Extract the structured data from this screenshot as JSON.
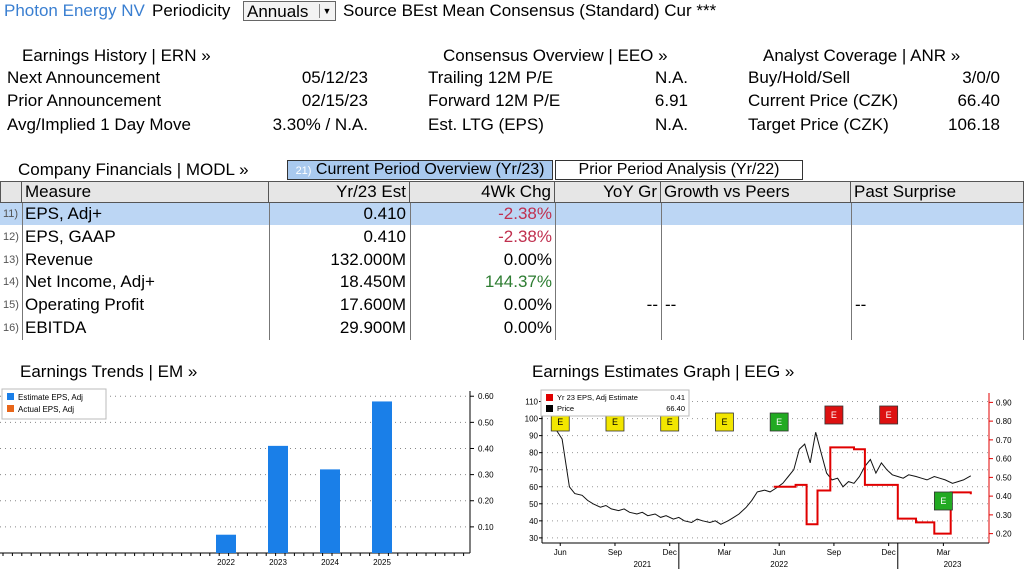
{
  "topbar": {
    "company": "Photon Energy NV",
    "periodicity_label": "Periodicity",
    "periodicity_value": "Annuals",
    "source_text": "Source BEst Mean Consensus (Standard) Cur ***"
  },
  "earnings_history": {
    "header": "Earnings History | ERN »",
    "rows": [
      {
        "label": "Next Announcement",
        "value": "05/12/23"
      },
      {
        "label": "Prior Announcement",
        "value": "02/15/23"
      },
      {
        "label": "Avg/Implied 1 Day Move",
        "value": "3.30% / N.A."
      }
    ]
  },
  "consensus_overview": {
    "header": "Consensus Overview | EEO »",
    "rows": [
      {
        "label": "Trailing 12M P/E",
        "value": "N.A."
      },
      {
        "label": "Forward 12M P/E",
        "value": "6.91"
      },
      {
        "label": "Est. LTG (EPS)",
        "value": "N.A."
      }
    ]
  },
  "analyst_coverage": {
    "header": "Analyst Coverage | ANR »",
    "rows": [
      {
        "label": "Buy/Hold/Sell",
        "value": "3/0/0"
      },
      {
        "label": "Current Price (CZK)",
        "value": "66.40"
      },
      {
        "label": "Target Price (CZK)",
        "value": "106.18"
      }
    ]
  },
  "financials": {
    "header": "Company Financials | MODL »",
    "tab_current_num": "21)",
    "tab_current": "Current Period Overview (Yr/23)",
    "tab_prior": "Prior Period Analysis (Yr/22)",
    "columns": [
      "Measure",
      "Yr/23 Est",
      "4Wk Chg",
      "YoY Gr",
      "Growth vs Peers",
      "Past Surprise"
    ],
    "rows": [
      {
        "num": "11)",
        "measure": "EPS, Adj+",
        "est": "0.410",
        "chg": "-2.38%",
        "yoy": "",
        "peers": "",
        "surprise": ""
      },
      {
        "num": "12)",
        "measure": "EPS, GAAP",
        "est": "0.410",
        "chg": "-2.38%",
        "yoy": "",
        "peers": "",
        "surprise": ""
      },
      {
        "num": "13)",
        "measure": "Revenue",
        "est": "132.000M",
        "chg": "0.00%",
        "yoy": "",
        "peers": "",
        "surprise": ""
      },
      {
        "num": "14)",
        "measure": "Net Income, Adj+",
        "est": "18.450M",
        "chg": "144.37%",
        "yoy": "",
        "peers": "",
        "surprise": ""
      },
      {
        "num": "15)",
        "measure": "Operating Profit",
        "est": "17.600M",
        "chg": "0.00%",
        "yoy": "--",
        "peers": "--",
        "surprise": "--"
      },
      {
        "num": "16)",
        "measure": "EBITDA",
        "est": "29.900M",
        "chg": "0.00%",
        "yoy": "",
        "peers": "",
        "surprise": ""
      }
    ]
  },
  "chart_data": [
    {
      "type": "bar",
      "title": "Earnings Trends | EM »",
      "legend": [
        "Estimate EPS, Adj",
        "Actual EPS, Adj"
      ],
      "legend_colors": [
        "#1a7fe8",
        "#e8661a"
      ],
      "categories": [
        "2022",
        "2023",
        "2024",
        "2025"
      ],
      "values": [
        0.07,
        0.41,
        0.32,
        0.58
      ],
      "ylim": [
        0,
        0.62
      ],
      "yticks": [
        "0.10",
        "0.20",
        "0.30",
        "0.40",
        "0.50",
        "0.60"
      ],
      "ytick_values": [
        0.1,
        0.2,
        0.3,
        0.4,
        0.5,
        0.6
      ]
    },
    {
      "type": "line",
      "title": "Earnings Estimates Graph | EEG »",
      "legend": [
        {
          "name": "Yr 23 EPS, Adj Estimate",
          "value": "0.41",
          "color": "#e00000"
        },
        {
          "name": "Price",
          "value": "66.40",
          "color": "#000000"
        }
      ],
      "left_yticks": [
        "30",
        "40",
        "50",
        "60",
        "70",
        "80",
        "90",
        "100",
        "110"
      ],
      "left_ytick_values": [
        30,
        40,
        50,
        60,
        70,
        80,
        90,
        100,
        110
      ],
      "left_ylim": [
        27,
        115
      ],
      "right_yticks": [
        "0.20",
        "0.30",
        "0.40",
        "0.50",
        "0.60",
        "0.70",
        "0.80",
        "0.90"
      ],
      "right_ytick_values": [
        0.2,
        0.3,
        0.4,
        0.5,
        0.6,
        0.7,
        0.8,
        0.9
      ],
      "right_ylim": [
        0.15,
        0.95
      ],
      "xticks": [
        "Jun",
        "Sep",
        "Dec",
        "Mar",
        "Jun",
        "Sep",
        "Dec",
        "Mar"
      ],
      "xtick_values": [
        0.5,
        3.5,
        6.5,
        9.5,
        12.5,
        15.5,
        18.5,
        21.5
      ],
      "xlim": [
        -0.5,
        24
      ],
      "year_labels": [
        {
          "label": "2021",
          "x": 5
        },
        {
          "label": "2022",
          "x": 12.5
        },
        {
          "label": "2023",
          "x": 22
        }
      ],
      "year_dividers": [
        7,
        19
      ],
      "event_marker": "E",
      "events": [
        {
          "x": 0.5,
          "color": "#f2e600"
        },
        {
          "x": 3.5,
          "color": "#f2e600"
        },
        {
          "x": 6.5,
          "color": "#f2e600"
        },
        {
          "x": 9.5,
          "color": "#f2e600"
        },
        {
          "x": 12.5,
          "color": "#22aa22"
        },
        {
          "x": 15.5,
          "color": "#dd1111"
        },
        {
          "x": 18.5,
          "color": "#dd1111"
        },
        {
          "x": 21.5,
          "color": "#22aa22"
        }
      ],
      "price": [
        [
          0,
          95
        ],
        [
          0.3,
          93
        ],
        [
          0.6,
          88
        ],
        [
          1,
          60
        ],
        [
          1.3,
          56
        ],
        [
          1.7,
          55
        ],
        [
          2,
          52
        ],
        [
          2.3,
          50
        ],
        [
          2.7,
          48
        ],
        [
          3,
          49
        ],
        [
          3.3,
          47
        ],
        [
          3.7,
          46
        ],
        [
          4,
          47
        ],
        [
          4.3,
          45
        ],
        [
          4.7,
          44
        ],
        [
          5,
          45
        ],
        [
          5.3,
          43
        ],
        [
          5.7,
          44
        ],
        [
          6,
          42
        ],
        [
          6.3,
          43
        ],
        [
          6.7,
          41
        ],
        [
          7,
          42
        ],
        [
          7.3,
          40
        ],
        [
          7.7,
          39
        ],
        [
          8,
          41
        ],
        [
          8.3,
          40
        ],
        [
          8.7,
          39
        ],
        [
          9,
          40
        ],
        [
          9.3,
          38
        ],
        [
          9.7,
          40
        ],
        [
          10,
          42
        ],
        [
          10.3,
          44
        ],
        [
          10.7,
          48
        ],
        [
          11,
          52
        ],
        [
          11.3,
          57
        ],
        [
          11.7,
          58
        ],
        [
          12,
          57
        ],
        [
          12.3,
          59
        ],
        [
          12.7,
          62
        ],
        [
          13,
          66
        ],
        [
          13.3,
          70
        ],
        [
          13.6,
          82
        ],
        [
          13.9,
          85
        ],
        [
          14.2,
          74
        ],
        [
          14.5,
          92
        ],
        [
          14.8,
          80
        ],
        [
          15.1,
          68
        ],
        [
          15.4,
          64
        ],
        [
          15.7,
          65
        ],
        [
          16,
          60
        ],
        [
          16.3,
          63
        ],
        [
          16.6,
          62
        ],
        [
          16.9,
          66
        ],
        [
          17.2,
          72
        ],
        [
          17.5,
          76
        ],
        [
          17.8,
          68
        ],
        [
          18.1,
          74
        ],
        [
          18.4,
          70
        ],
        [
          18.7,
          67
        ],
        [
          19,
          66
        ],
        [
          19.3,
          65
        ],
        [
          19.6,
          67
        ],
        [
          20,
          66
        ],
        [
          20.3,
          65
        ],
        [
          20.6,
          64
        ],
        [
          21,
          66
        ],
        [
          21.3,
          65
        ],
        [
          21.6,
          64
        ],
        [
          22,
          62
        ],
        [
          22.3,
          63
        ],
        [
          22.6,
          64
        ],
        [
          23,
          66.4
        ]
      ],
      "estimate": [
        [
          12.2,
          0.45
        ],
        [
          13.4,
          0.45
        ],
        [
          13.4,
          0.46
        ],
        [
          14,
          0.46
        ],
        [
          14,
          0.25
        ],
        [
          14.6,
          0.25
        ],
        [
          14.6,
          0.43
        ],
        [
          15.3,
          0.43
        ],
        [
          15.3,
          0.66
        ],
        [
          16.6,
          0.66
        ],
        [
          16.6,
          0.65
        ],
        [
          17.2,
          0.65
        ],
        [
          17.2,
          0.46
        ],
        [
          19,
          0.46
        ],
        [
          19,
          0.28
        ],
        [
          20,
          0.28
        ],
        [
          20,
          0.26
        ],
        [
          21,
          0.26
        ],
        [
          21,
          0.2
        ],
        [
          21.9,
          0.2
        ],
        [
          21.9,
          0.42
        ],
        [
          23,
          0.42
        ],
        [
          23,
          0.41
        ]
      ]
    }
  ]
}
